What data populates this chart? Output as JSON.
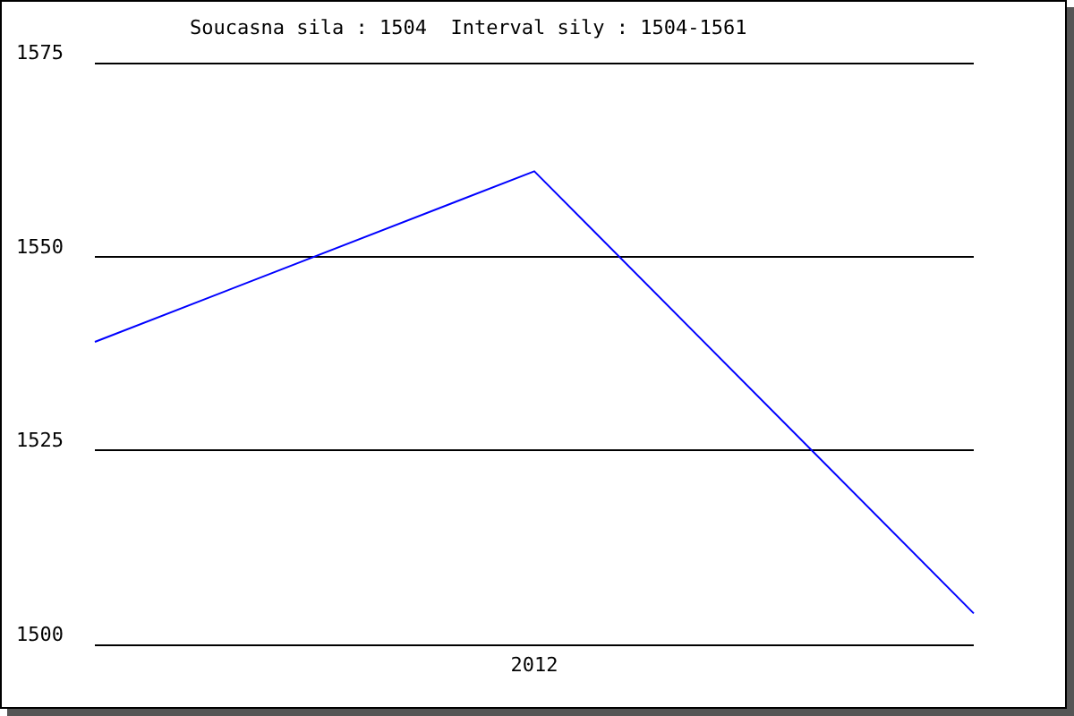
{
  "chart_data": {
    "type": "line",
    "title": "Soucasna sila : 1504  Interval sily : 1504-1561",
    "categories": [
      null,
      "2012",
      null
    ],
    "series": [
      {
        "color": "#0000ff",
        "values": [
          1539,
          1561,
          1504
        ]
      }
    ],
    "ylim": [
      1500,
      1575
    ],
    "yticks": [
      1500,
      1525,
      1550,
      1575
    ],
    "grid": "y",
    "marker": "none",
    "line_style": "solid"
  }
}
